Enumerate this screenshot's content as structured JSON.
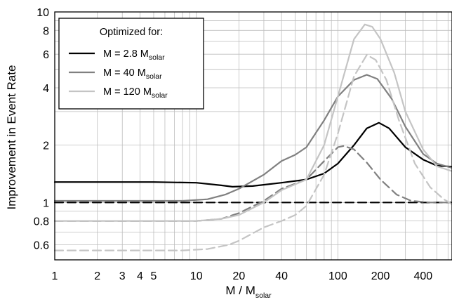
{
  "chart_data": {
    "type": "line",
    "xscale": "log",
    "yscale": "log",
    "xlim": [
      1,
      640
    ],
    "ylim": [
      0.5,
      10
    ],
    "grid": true,
    "xlabel": "M / M",
    "xlabel_sub": "solar",
    "ylabel": "Improvement in Event Rate",
    "x_ticks": [
      1,
      2,
      3,
      4,
      5,
      10,
      20,
      40,
      100,
      200,
      400
    ],
    "x_tick_labels": [
      "1",
      "2",
      "3",
      "4",
      "5",
      "10",
      "20",
      "40",
      "100",
      "200",
      "400"
    ],
    "y_ticks": [
      0.6,
      0.8,
      1,
      2,
      4,
      6,
      8,
      10
    ],
    "y_tick_labels": [
      "0.6",
      "0.8",
      "1",
      "2",
      "4",
      "6",
      "8",
      "10"
    ],
    "legend": {
      "title": "Optimized for:",
      "placement": "top-left",
      "entries": [
        {
          "label": "M = 2.8 M",
          "sub": "solar",
          "color": "#000000"
        },
        {
          "label": "M = 40 M",
          "sub": "solar",
          "color": "#808080"
        },
        {
          "label": "M = 120 M",
          "sub": "solar",
          "color": "#c4c4c4"
        }
      ]
    },
    "series": [
      {
        "color": "#000000",
        "dashed": false,
        "points": [
          [
            1,
            1.28
          ],
          [
            5,
            1.28
          ],
          [
            10,
            1.27
          ],
          [
            15,
            1.23
          ],
          [
            18,
            1.21
          ],
          [
            25,
            1.22
          ],
          [
            40,
            1.27
          ],
          [
            60,
            1.32
          ],
          [
            80,
            1.42
          ],
          [
            100,
            1.6
          ],
          [
            130,
            2.0
          ],
          [
            160,
            2.45
          ],
          [
            195,
            2.62
          ],
          [
            230,
            2.45
          ],
          [
            300,
            1.95
          ],
          [
            400,
            1.68
          ],
          [
            500,
            1.56
          ],
          [
            640,
            1.54
          ]
        ]
      },
      {
        "color": "#000000",
        "dashed": true,
        "points": [
          [
            1,
            1.0
          ],
          [
            640,
            1.0
          ]
        ]
      },
      {
        "color": "#808080",
        "dashed": false,
        "points": [
          [
            1,
            1.02
          ],
          [
            8,
            1.02
          ],
          [
            12,
            1.04
          ],
          [
            16,
            1.1
          ],
          [
            20,
            1.18
          ],
          [
            30,
            1.4
          ],
          [
            40,
            1.65
          ],
          [
            50,
            1.78
          ],
          [
            60,
            1.95
          ],
          [
            80,
            2.7
          ],
          [
            100,
            3.6
          ],
          [
            130,
            4.4
          ],
          [
            160,
            4.68
          ],
          [
            190,
            4.45
          ],
          [
            240,
            3.5
          ],
          [
            300,
            2.5
          ],
          [
            400,
            1.8
          ],
          [
            500,
            1.6
          ],
          [
            640,
            1.52
          ]
        ]
      },
      {
        "color": "#808080",
        "dashed": true,
        "points": [
          [
            1,
            0.8
          ],
          [
            10,
            0.8
          ],
          [
            15,
            0.82
          ],
          [
            20,
            0.88
          ],
          [
            30,
            1.02
          ],
          [
            40,
            1.18
          ],
          [
            60,
            1.32
          ],
          [
            80,
            1.65
          ],
          [
            100,
            1.95
          ],
          [
            110,
            1.98
          ],
          [
            130,
            1.9
          ],
          [
            160,
            1.62
          ],
          [
            200,
            1.32
          ],
          [
            260,
            1.1
          ],
          [
            330,
            1.02
          ],
          [
            450,
            1.0
          ],
          [
            640,
            1.0
          ]
        ]
      },
      {
        "color": "#c4c4c4",
        "dashed": false,
        "points": [
          [
            1,
            0.8
          ],
          [
            10,
            0.8
          ],
          [
            15,
            0.82
          ],
          [
            20,
            0.86
          ],
          [
            30,
            1.0
          ],
          [
            40,
            1.16
          ],
          [
            60,
            1.32
          ],
          [
            80,
            2.0
          ],
          [
            100,
            3.6
          ],
          [
            130,
            7.2
          ],
          [
            155,
            8.6
          ],
          [
            175,
            8.35
          ],
          [
            200,
            7.2
          ],
          [
            250,
            4.8
          ],
          [
            300,
            3.0
          ],
          [
            400,
            1.9
          ],
          [
            500,
            1.55
          ],
          [
            640,
            1.46
          ]
        ]
      },
      {
        "color": "#c4c4c4",
        "dashed": true,
        "points": [
          [
            1,
            0.56
          ],
          [
            8,
            0.56
          ],
          [
            12,
            0.57
          ],
          [
            17,
            0.6
          ],
          [
            20,
            0.63
          ],
          [
            30,
            0.74
          ],
          [
            40,
            0.8
          ],
          [
            50,
            0.86
          ],
          [
            60,
            0.96
          ],
          [
            80,
            1.4
          ],
          [
            100,
            2.3
          ],
          [
            130,
            4.6
          ],
          [
            160,
            5.95
          ],
          [
            185,
            5.6
          ],
          [
            220,
            4.4
          ],
          [
            270,
            2.7
          ],
          [
            350,
            1.6
          ],
          [
            450,
            1.2
          ],
          [
            560,
            1.04
          ],
          [
            640,
            0.98
          ]
        ]
      }
    ]
  }
}
